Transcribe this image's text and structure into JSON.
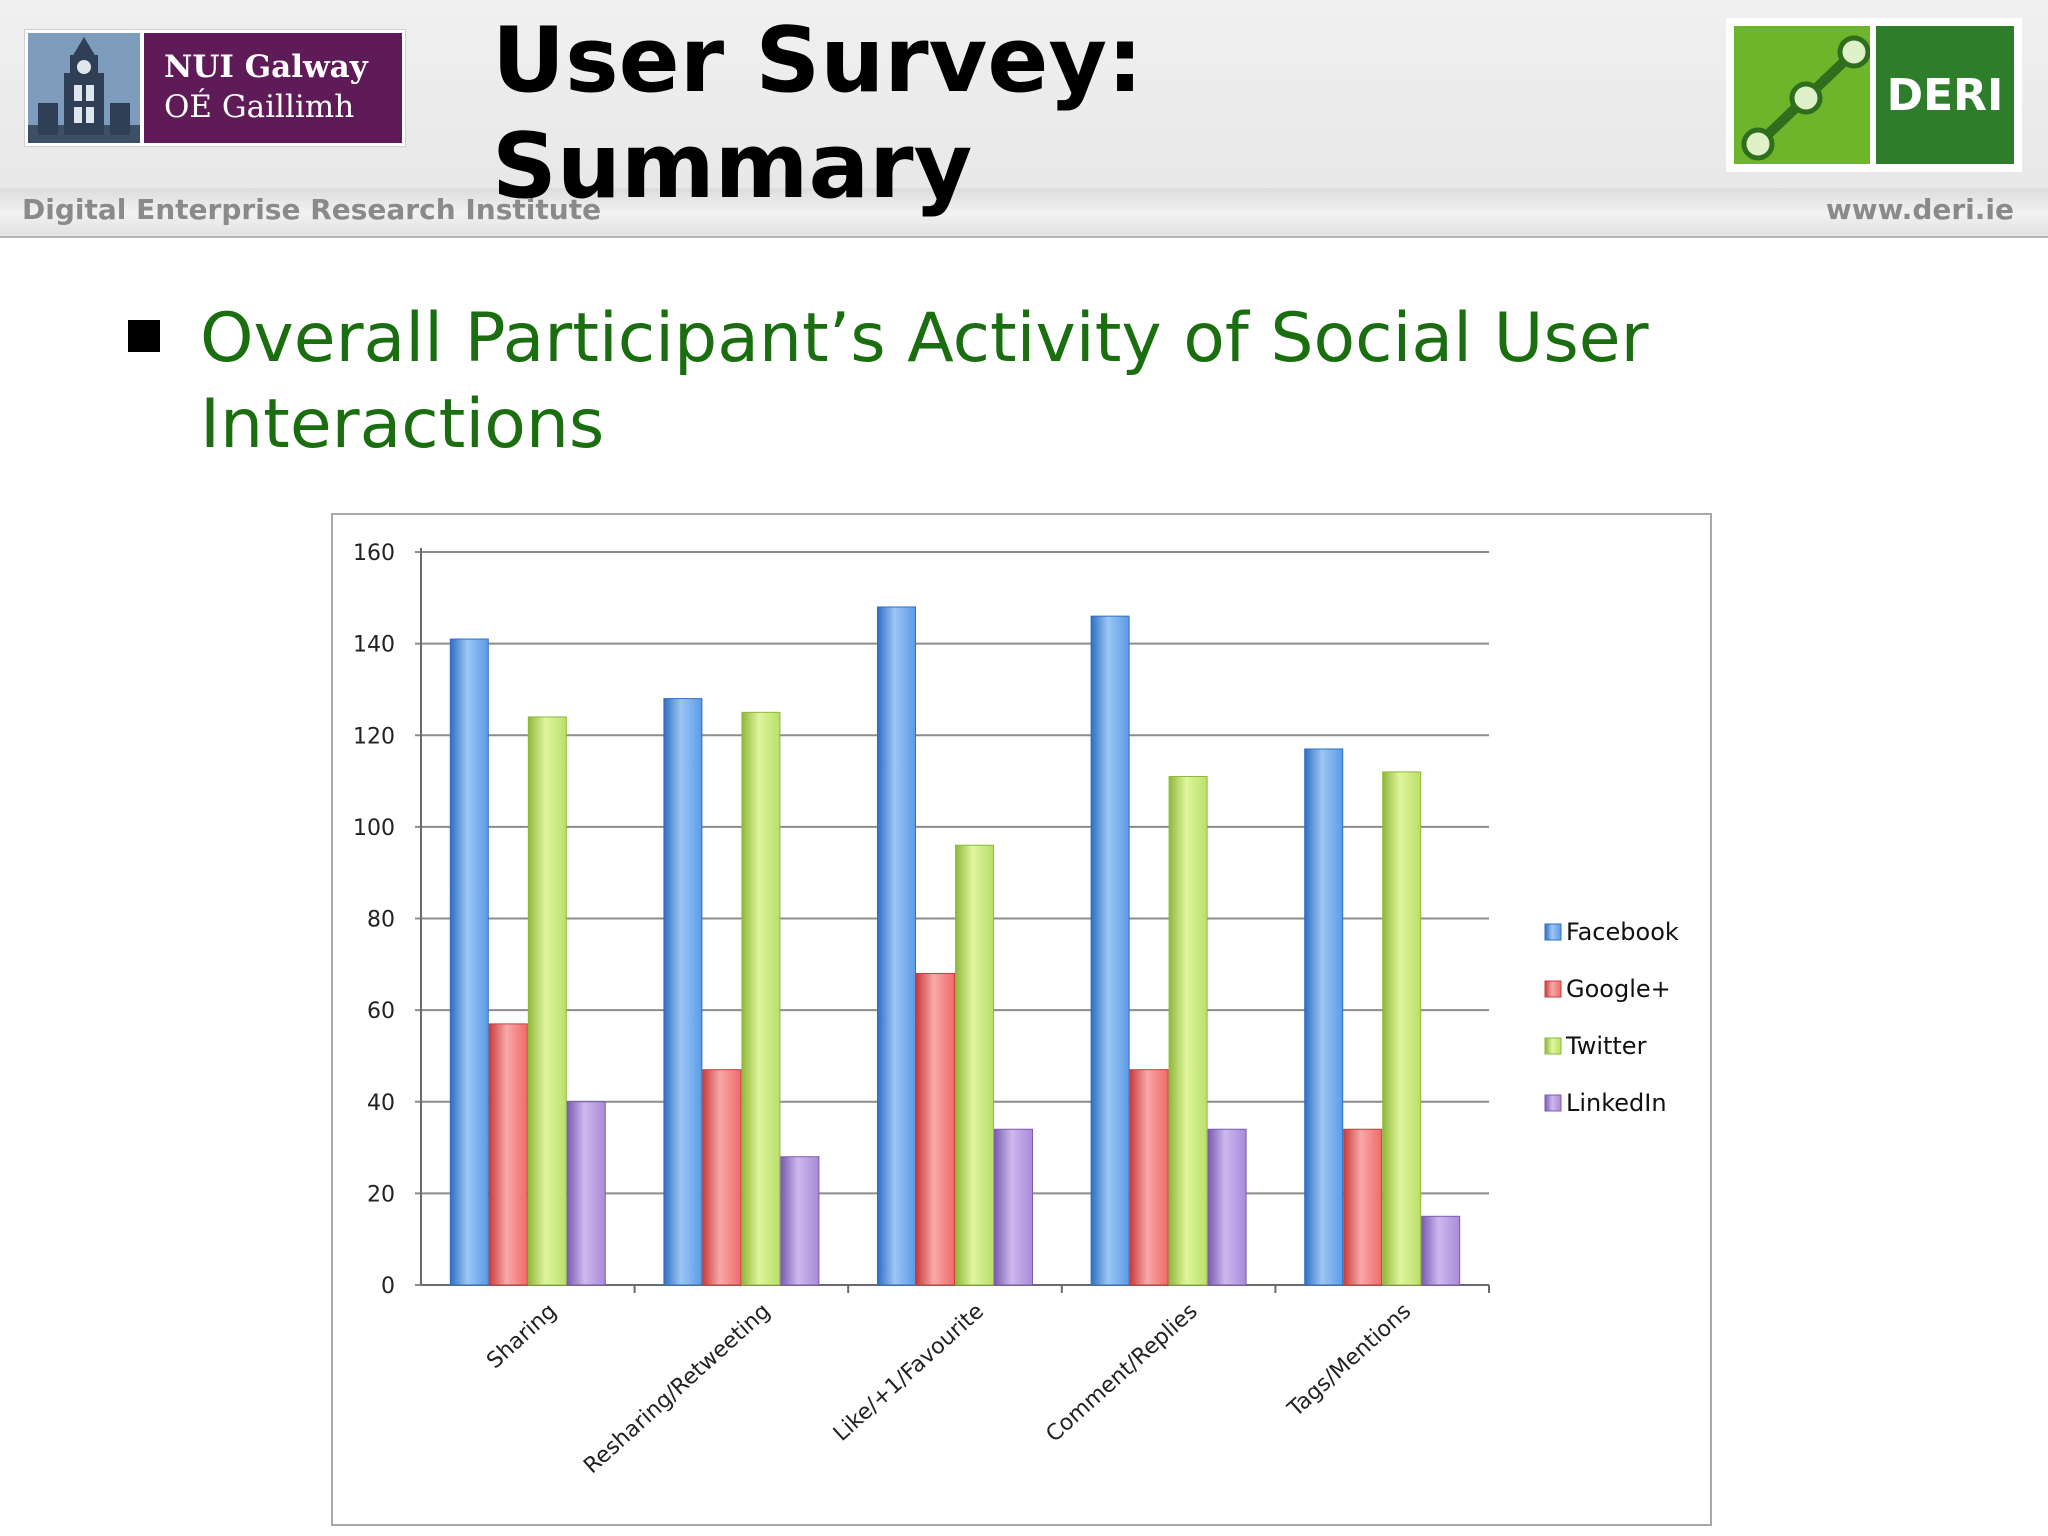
{
  "header": {
    "title": "User Survey: Summary",
    "institute": "Digital Enterprise Research Institute",
    "website": "www.deri.ie",
    "nui_logo": {
      "line1": "NUI Galway",
      "line2": "OÉ Gaillimh"
    },
    "deri_logo": {
      "text": "DERI"
    }
  },
  "bullet": {
    "text": "Overall Participant’s Activity of Social User Interactions"
  },
  "colors": {
    "title_green": "#1a6e0f",
    "facebook": "#5b9be6",
    "googleplus": "#f06a6a",
    "twitter": "#b9e06a",
    "linkedin": "#a98ad8"
  },
  "chart_data": {
    "type": "bar",
    "categories": [
      "Sharing",
      "Resharing/Retweeting",
      "Like/+1/Favourite",
      "Comment/Replies",
      "Tags/Mentions"
    ],
    "series": [
      {
        "name": "Facebook",
        "values": [
          141,
          128,
          148,
          146,
          117
        ]
      },
      {
        "name": "Google+",
        "values": [
          57,
          47,
          68,
          47,
          34
        ]
      },
      {
        "name": "Twitter",
        "values": [
          124,
          125,
          96,
          111,
          112
        ]
      },
      {
        "name": "LinkedIn",
        "values": [
          40,
          28,
          34,
          34,
          15
        ]
      }
    ],
    "ylim": [
      0,
      160
    ],
    "yticks": [
      "0",
      "20",
      "40",
      "60",
      "80",
      "100",
      "120",
      "140",
      "160"
    ],
    "grid": true,
    "legend": "right"
  }
}
